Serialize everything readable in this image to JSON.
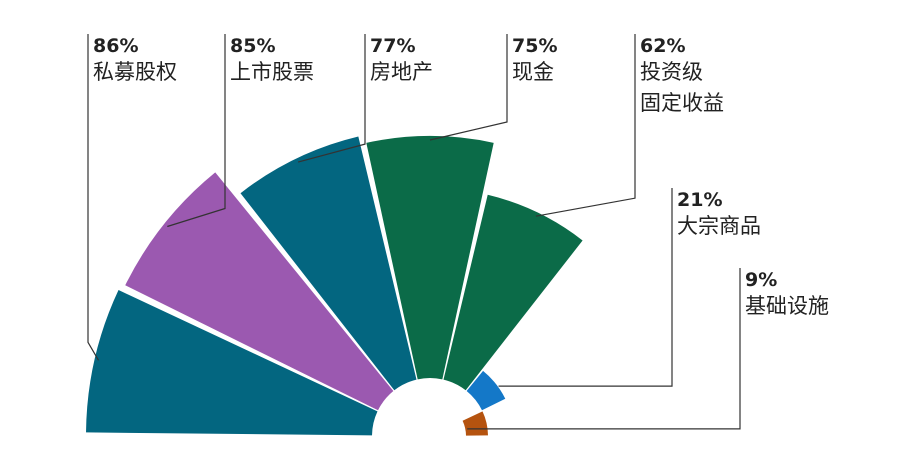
{
  "chart_data": {
    "type": "pie",
    "variant": "semicircle-polar-area",
    "title": "",
    "categories": [
      "私募股权",
      "上市股票",
      "房地产",
      "现金",
      "投资级固定收益",
      "大宗商品",
      "基础设施"
    ],
    "values": [
      86,
      85,
      77,
      75,
      62,
      21,
      9
    ],
    "value_labels": [
      "86%",
      "85%",
      "77%",
      "75%",
      "62%",
      "21%",
      "9%"
    ],
    "label_lines": [
      [
        "私募股权"
      ],
      [
        "上市股票"
      ],
      [
        "房地产"
      ],
      [
        "现金"
      ],
      [
        "投资级",
        "固定收益"
      ],
      [
        "大宗商品"
      ],
      [
        "基础设施"
      ]
    ],
    "colors": [
      "#036680",
      "#9b59b0",
      "#036680",
      "#0b6b48",
      "#0b6b48",
      "#1478c8",
      "#b5530f"
    ],
    "legend": "none",
    "grid": false
  }
}
